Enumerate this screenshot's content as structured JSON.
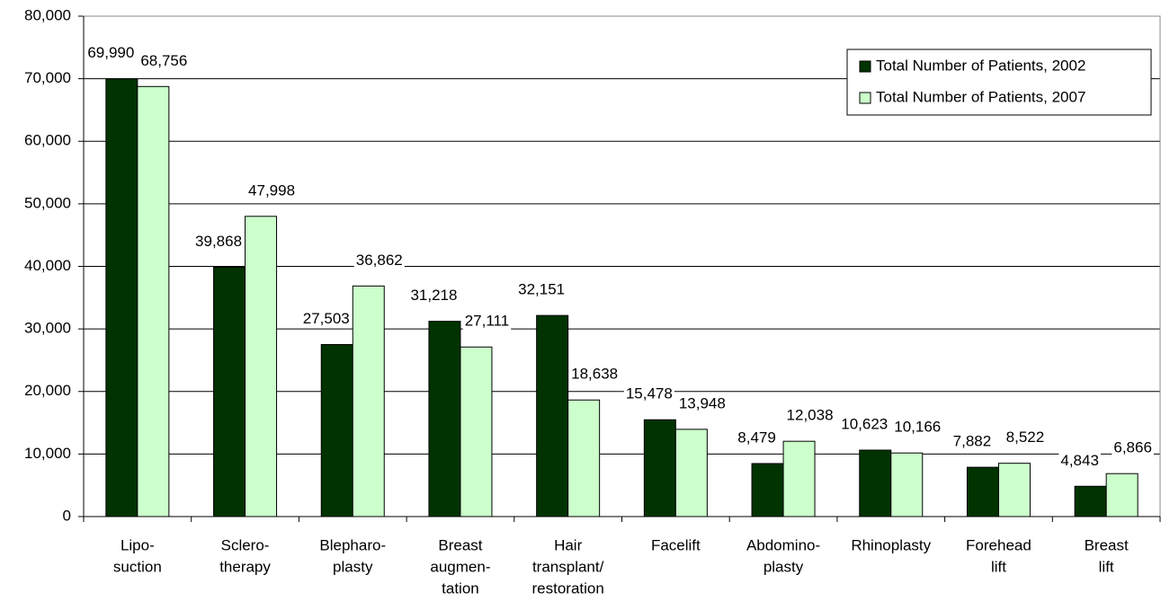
{
  "chart_data": {
    "type": "bar",
    "categories": [
      [
        "Lipo-",
        "suction"
      ],
      [
        "Sclero-",
        "therapy"
      ],
      [
        "Blepharo-",
        "plasty"
      ],
      [
        "Breast",
        "augmen-",
        "tation"
      ],
      [
        "Hair",
        "transplant/",
        "restoration"
      ],
      [
        "Facelift"
      ],
      [
        "Abdomino-",
        "plasty"
      ],
      [
        "Rhinoplasty"
      ],
      [
        "Forehead",
        "lift"
      ],
      [
        "Breast",
        "lift"
      ]
    ],
    "series": [
      {
        "name": "Total Number of Patients, 2002",
        "color": "#003300",
        "values": [
          69990,
          39868,
          27503,
          31218,
          32151,
          15478,
          8479,
          10623,
          7882,
          4843
        ],
        "value_labels": [
          "69,990",
          "39,868",
          "27,503",
          "31,218",
          "32,151",
          "15,478",
          "8,479",
          "10,623",
          "7,882",
          "4,843"
        ]
      },
      {
        "name": "Total Number of Patients, 2007",
        "color": "#ccffcc",
        "values": [
          68756,
          47998,
          36862,
          27111,
          18638,
          13948,
          12038,
          10166,
          8522,
          6866
        ],
        "value_labels": [
          "68,756",
          "47,998",
          "36,862",
          "27,111",
          "18,638",
          "13,948",
          "12,038",
          "10,166",
          "8,522",
          "6,866"
        ]
      }
    ],
    "ylim": [
      0,
      80000
    ],
    "yticks": [
      0,
      {
        "value": 10000,
        "label": "10,000"
      },
      {
        "value": 20000,
        "label": "20,000"
      },
      {
        "value": 30000,
        "label": "30,000"
      },
      {
        "value": 40000,
        "label": "40,000"
      },
      {
        "value": 50000,
        "label": "50,000"
      },
      {
        "value": 60000,
        "label": "60,000"
      },
      {
        "value": 70000,
        "label": "70,000"
      },
      {
        "value": 80000,
        "label": "80,000"
      }
    ],
    "grid": true,
    "legend": "upper right"
  }
}
